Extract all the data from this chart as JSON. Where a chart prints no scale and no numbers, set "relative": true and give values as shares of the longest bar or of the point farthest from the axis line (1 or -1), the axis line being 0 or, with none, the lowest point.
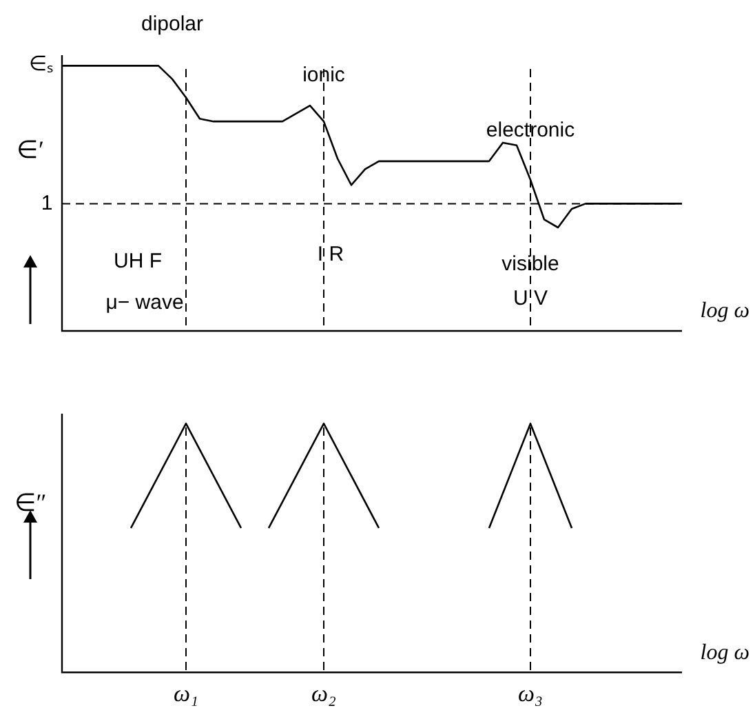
{
  "chart_data": [
    {
      "type": "line",
      "relative": true,
      "tick_labels": false,
      "ylabel": "∈′",
      "xlabel": "log ω",
      "categories": [
        null,
        null,
        null,
        null,
        null,
        null,
        null,
        null,
        null,
        "ω₁",
        null,
        null,
        null,
        null,
        null,
        null,
        null,
        null,
        null,
        "ω₂",
        null,
        null,
        null,
        null,
        null,
        null,
        null,
        null,
        null,
        null,
        null,
        null,
        null,
        null,
        "ω₃",
        null,
        null,
        null,
        null,
        null,
        null,
        null,
        null,
        null,
        null,
        null
      ],
      "series": [
        {
          "color": "#000000",
          "values": [
            1.0,
            1.0,
            1.0,
            1.0,
            1.0,
            1.0,
            1.0,
            1.0,
            0.95,
            0.88,
            0.8,
            0.79,
            0.79,
            0.79,
            0.79,
            0.79,
            0.79,
            0.82,
            0.85,
            0.79,
            0.65,
            0.55,
            0.61,
            0.64,
            0.64,
            0.64,
            0.64,
            0.64,
            0.64,
            0.64,
            0.64,
            0.64,
            0.71,
            0.7,
            0.57,
            0.42,
            0.39,
            0.46,
            0.48,
            0.48,
            0.48,
            0.48,
            0.48,
            0.48,
            0.48,
            0.48
          ]
        }
      ],
      "ref_lines": [
        {
          "axis": "y",
          "value": 0.48,
          "line_style": "dashed"
        },
        {
          "axis": "x",
          "value": "ω₁",
          "line_style": "dashed"
        },
        {
          "axis": "x",
          "value": "ω₂",
          "line_style": "dashed"
        },
        {
          "axis": "x",
          "value": "ω₃",
          "line_style": "dashed"
        }
      ],
      "annotations": [
        "∈ₛ",
        "1",
        "dipolar",
        "ionic",
        "electronic",
        "UH F",
        "μ− wave",
        "I R",
        "visible",
        "U V"
      ]
    },
    {
      "type": "line",
      "relative": true,
      "tick_labels": "x",
      "ylabel": "∈″",
      "xlabel": "log ω",
      "categories": [
        null,
        null,
        null,
        null,
        null,
        null,
        null,
        null,
        null,
        "ω₁",
        null,
        null,
        null,
        null,
        null,
        null,
        null,
        null,
        null,
        "ω₂",
        null,
        null,
        null,
        null,
        null,
        null,
        null,
        null,
        null,
        null,
        null,
        null,
        null,
        null,
        "ω₃",
        null,
        null,
        null,
        null,
        null,
        null,
        null,
        null,
        null,
        null,
        null
      ],
      "series": [
        {
          "color": "#000000",
          "values": [
            null,
            null,
            null,
            null,
            null,
            0.58,
            null,
            null,
            null,
            1.0,
            null,
            null,
            null,
            0.58,
            null,
            null,
            null,
            null,
            null,
            null,
            null,
            null,
            null,
            null,
            null,
            null,
            null,
            null,
            null,
            null,
            null,
            null,
            null,
            null,
            null,
            null,
            null,
            null,
            null,
            null,
            null,
            null,
            null,
            null,
            null,
            null
          ]
        },
        {
          "color": "#000000",
          "values": [
            null,
            null,
            null,
            null,
            null,
            null,
            null,
            null,
            null,
            null,
            null,
            null,
            null,
            null,
            null,
            0.58,
            null,
            null,
            null,
            1.0,
            null,
            null,
            null,
            0.58,
            null,
            null,
            null,
            null,
            null,
            null,
            null,
            null,
            null,
            null,
            null,
            null,
            null,
            null,
            null,
            null,
            null,
            null,
            null,
            null,
            null,
            null
          ]
        },
        {
          "color": "#000000",
          "values": [
            null,
            null,
            null,
            null,
            null,
            null,
            null,
            null,
            null,
            null,
            null,
            null,
            null,
            null,
            null,
            null,
            null,
            null,
            null,
            null,
            null,
            null,
            null,
            null,
            null,
            null,
            null,
            null,
            null,
            null,
            null,
            0.58,
            null,
            null,
            1.0,
            null,
            null,
            0.58,
            null,
            null,
            null,
            null,
            null,
            null,
            null,
            null
          ]
        }
      ],
      "ref_lines": [
        {
          "axis": "x",
          "value": "ω₁",
          "line_style": "dashed"
        },
        {
          "axis": "x",
          "value": "ω₂",
          "line_style": "dashed"
        },
        {
          "axis": "x",
          "value": "ω₃",
          "line_style": "dashed"
        }
      ]
    }
  ]
}
